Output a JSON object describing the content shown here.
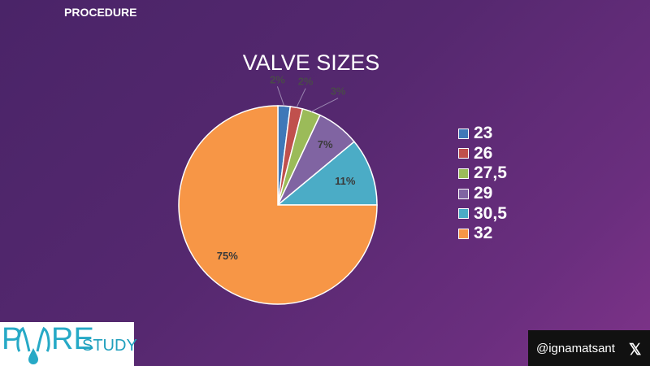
{
  "header": {
    "section_label": "PROCEDURE"
  },
  "chart_data": {
    "type": "pie",
    "title": "VALVE SIZES",
    "categories": [
      "23",
      "26",
      "27,5",
      "29",
      "30,5",
      "32"
    ],
    "values": [
      2,
      2,
      3,
      7,
      11,
      75
    ],
    "labels": [
      "2%",
      "2%",
      "3%",
      "7%",
      "11%",
      "75%"
    ],
    "colors": [
      "#3f78b8",
      "#c0504d",
      "#9bbb59",
      "#8064a2",
      "#4bacc6",
      "#f79646"
    ],
    "start_angle": "12 o'clock",
    "direction": "clockwise",
    "legend_position": "right"
  },
  "footer": {
    "logo": {
      "text_p": "P",
      "text_re": "RE",
      "text_study": "STUDY"
    },
    "handle": "@ignamatsant",
    "social_icon": "x-logo-icon"
  }
}
